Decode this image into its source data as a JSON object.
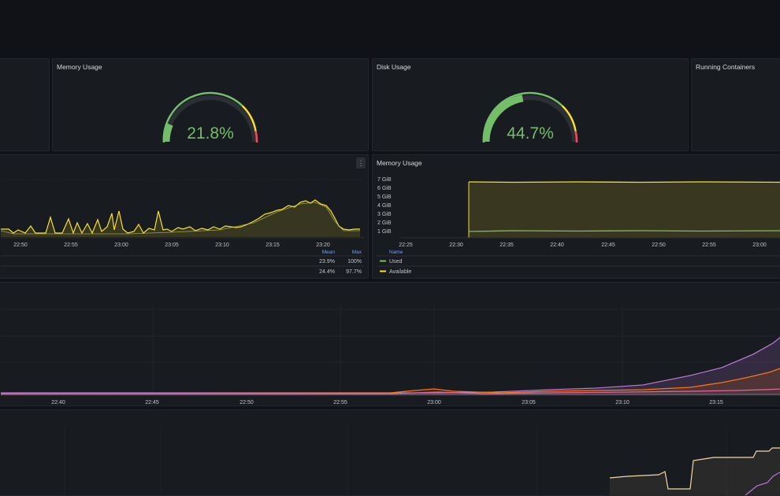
{
  "panels": {
    "memory_gauge": {
      "title": "Memory Usage",
      "value_text": "21.8%",
      "value": 21.8,
      "color": "#73bf69"
    },
    "disk_gauge": {
      "title": "Disk Usage",
      "value_text": "44.7%",
      "value": 44.7,
      "color": "#73bf69"
    },
    "running_containers": {
      "title": "Running Containers"
    },
    "memory_timeseries": {
      "title": "Memory Usage"
    }
  },
  "cpu_chart": {
    "x_ticks": [
      "22:50",
      "22:55",
      "23:00",
      "23:05",
      "23:10",
      "23:15",
      "23:20"
    ],
    "legend_headers": {
      "mean": "Mean",
      "max": "Max"
    },
    "legend_rows": [
      {
        "mean": "23.9%",
        "max": "100%"
      },
      {
        "mean": "24.4%",
        "max": "97.7%"
      }
    ]
  },
  "memory_chart": {
    "y_ticks": [
      "7 GiB",
      "6 GiB",
      "5 GiB",
      "4 GiB",
      "3 GiB",
      "2 GiB",
      "1 GiB"
    ],
    "x_ticks": [
      "22:25",
      "22:30",
      "22:35",
      "22:40",
      "22:45",
      "22:50",
      "22:55",
      "23:00"
    ],
    "legend_header": "Name",
    "legend": [
      {
        "name": "Used",
        "color": "#73bf69"
      },
      {
        "name": "Available",
        "color": "#fade2a"
      }
    ]
  },
  "network_chart": {
    "x_ticks": [
      "22:40",
      "22:45",
      "22:50",
      "22:55",
      "23:00",
      "23:05",
      "23:10",
      "23:15"
    ]
  },
  "colors": {
    "green": "#73bf69",
    "yellow": "#fade2a",
    "red": "#f2495c",
    "purple": "#b877d9",
    "orange": "#ff780a",
    "pink": "#e0669b",
    "cream": "#f2d8a0"
  }
}
